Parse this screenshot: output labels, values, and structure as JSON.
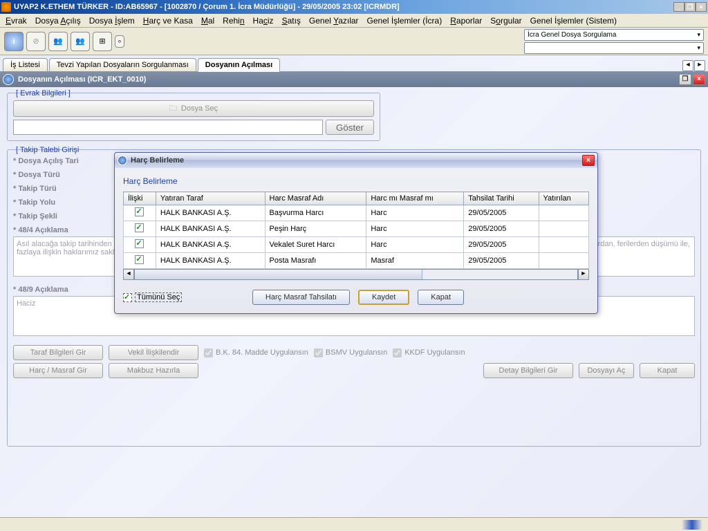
{
  "titlebar": "UYAP2   K.ETHEM TÜRKER - ID:AB65967 - [1002870 / Çorum 1. İcra Müdürlüğü] - 29/05/2005 23:02 [ICRMDR]",
  "menu": [
    "Evrak",
    "Dosya Açılış",
    "Dosya İşlem",
    "Harç ve Kasa",
    "Mal",
    "Rehin",
    "Haciz",
    "Satış",
    "Genel Yazılar",
    "Genel İşlemler (İcra)",
    "Raporlar",
    "Sorgular",
    "Genel İşlemler (Sistem)"
  ],
  "comboTop": "İcra Genel Dosya Sorgulama",
  "tabs": [
    "İş Listesi",
    "Tevzi Yapılan Dosyaların Sorgulanması"
  ],
  "activeTab": "Dosyanın Açılması",
  "innerHeader": "Dosyanın Açılması (ICR_EKT_0010)",
  "evrak": {
    "legend": "[ Evrak Bilgileri ]",
    "dosyaSec": "Dosya Seç",
    "goster": "Göster"
  },
  "takip": {
    "legend": "[ Takip Talebi Girişi",
    "labels": [
      "* Dosya Açılış Tari",
      "* Dosya Türü",
      "* Takip Türü",
      "* Takip Yolu",
      "* Takip Şekli"
    ]
  },
  "aciklama48_4_label": "* 48/4 Açıklama",
  "aciklama48_4_text": "Asıl alacağa takip tarihinden itibaren işleyecek yıllık %__ temerrüt faizi, masraf ve ücretivekaletin ilavesi(kısmi ödemelerin BK md. 84 gereği öncelikle işlemiş faiz ve masraflardan, ferilerden düşümü ile, fazlaya ilişkin haklarımız saklı kalmak kaydıyla)",
  "aciklama48_9_label": "* 48/9 Açıklama",
  "aciklama48_9_text": "Haciz",
  "bottomBtns": {
    "taraf": "Taraf Bilgileri Gir",
    "vekil": "Vekil İlişkilendir",
    "harc": "Harç / Masraf Gir",
    "makbuz": "Makbuz Hazırla",
    "detay": "Detay Bilgileri Gir",
    "ac": "Dosyayı Aç",
    "kapat": "Kapat"
  },
  "bottomChk": {
    "bk": "B.K. 84. Madde Uygulansın",
    "bsmv": "BSMV Uygulansın",
    "kkdf": "KKDF Uygulansın"
  },
  "modal": {
    "title": "Harç Belirleme",
    "heading": "Harç Belirleme",
    "cols": [
      "İlişki",
      "Yatıran Taraf",
      "Harc Masraf Adı",
      "Harc mı Masraf mı",
      "Tahsilat Tarihi",
      "Yatırılan"
    ],
    "rows": [
      {
        "taraf": "HALK BANKASI A.Ş.",
        "ad": "Başvurma Harcı",
        "tip": "Harc",
        "tarih": "29/05/2005"
      },
      {
        "taraf": "HALK BANKASI A.Ş.",
        "ad": "Peşin Harç",
        "tip": "Harc",
        "tarih": "29/05/2005"
      },
      {
        "taraf": "HALK BANKASI A.Ş.",
        "ad": "Vekalet Suret Harcı",
        "tip": "Harc",
        "tarih": "29/05/2005"
      },
      {
        "taraf": "HALK BANKASI A.Ş.",
        "ad": "Posta Masrafı",
        "tip": "Masraf",
        "tarih": "29/05/2005"
      }
    ],
    "tumunu": "Tümünü Seç",
    "tahsilat": "Harç Masraf Tahsilatı",
    "kaydet": "Kaydet",
    "kapat": "Kapat"
  }
}
